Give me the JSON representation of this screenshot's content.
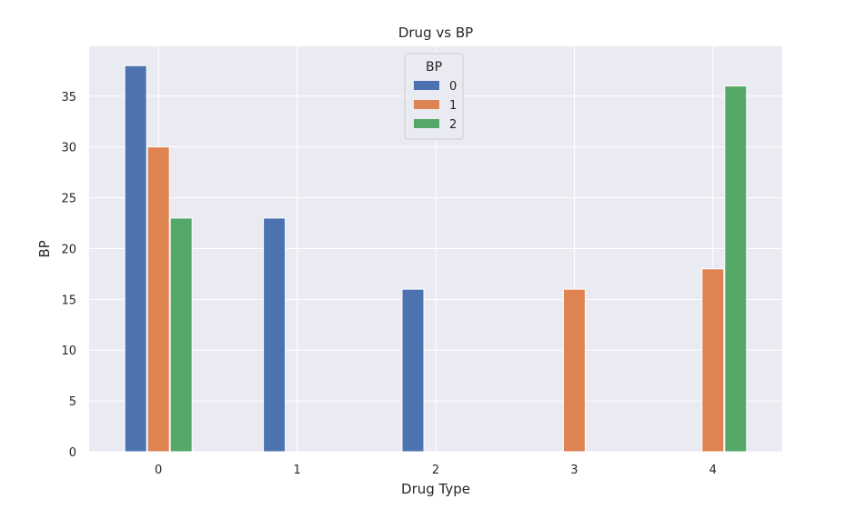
{
  "chart_data": {
    "type": "bar",
    "title": "Drug vs BP",
    "xlabel": "Drug Type",
    "ylabel": "BP",
    "categories": [
      "0",
      "1",
      "2",
      "3",
      "4"
    ],
    "series": [
      {
        "name": "0",
        "color": "#4c72b0",
        "values": [
          38,
          23,
          16,
          0,
          0
        ]
      },
      {
        "name": "1",
        "color": "#dd8452",
        "values": [
          30,
          0,
          0,
          16,
          18
        ]
      },
      {
        "name": "2",
        "color": "#55a868",
        "values": [
          23,
          0,
          0,
          0,
          36
        ]
      }
    ],
    "ylim": [
      0,
      39.9
    ],
    "yticks": [
      0,
      5,
      10,
      15,
      20,
      25,
      30,
      35
    ],
    "grid": true,
    "legend": {
      "title": "BP",
      "placement": "top-center"
    },
    "colors": {
      "plot_background": "#eaeaf2",
      "grid": "#ffffff"
    }
  }
}
